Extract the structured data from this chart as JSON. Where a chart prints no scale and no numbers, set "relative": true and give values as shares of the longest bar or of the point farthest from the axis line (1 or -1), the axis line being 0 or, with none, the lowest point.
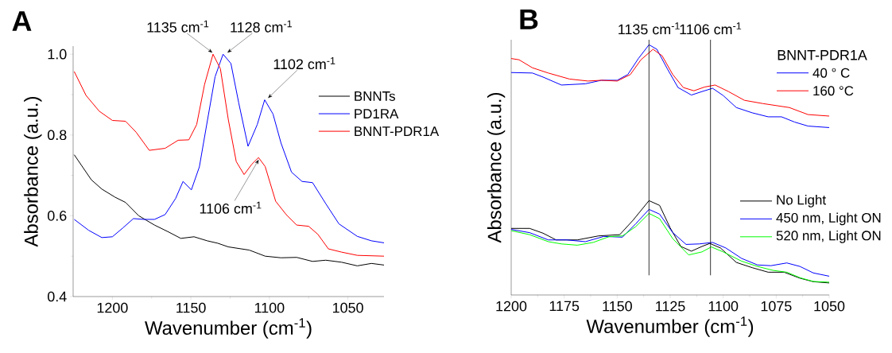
{
  "chart_data": [
    {
      "type": "line",
      "title": "A",
      "xlabel": "Wavenumber (cm$^{-1}$)",
      "ylabel": "Absorbance (a.u.)",
      "xlim": [
        1225,
        1027
      ],
      "xticks": [
        1200,
        1150,
        1100,
        1050
      ],
      "ylim": [
        0.4,
        1.02
      ],
      "yticks": [
        {
          "value": 0.4,
          "label": "0.4"
        },
        {
          "value": 0.6,
          "label": "0.6"
        },
        {
          "value": 0.8,
          "label": "0.8"
        },
        {
          "value": 1.0,
          "label": "1.0"
        }
      ],
      "legend": "right",
      "annotations": [
        {
          "text": "1135 cm$^{-1}$",
          "x": 1135,
          "y": 1.0
        },
        {
          "text": "1128 cm$^{-1}$",
          "x": 1128,
          "y": 1.0
        },
        {
          "text": "1102 cm$^{-1}$",
          "x": 1102,
          "y": 0.887
        },
        {
          "text": "1106 cm$^{-1}$",
          "x": 1106,
          "y": 0.744
        }
      ],
      "series": [
        {
          "name": "BNNTs",
          "color": "#000000",
          "x": [
            1224.3,
            1213.4,
            1206.7,
            1198.3,
            1191.6,
            1183.2,
            1173.2,
            1164.8,
            1156.4,
            1148.0,
            1139.6,
            1132.9,
            1126.2,
            1112.8,
            1102.7,
            1092.6,
            1082.6,
            1072.5,
            1064.1,
            1054.0,
            1044.0,
            1035,
            1027
          ],
          "values": [
            0.751,
            0.689,
            0.666,
            0.646,
            0.633,
            0.6,
            0.577,
            0.561,
            0.544,
            0.548,
            0.538,
            0.532,
            0.523,
            0.515,
            0.5,
            0.496,
            0.497,
            0.487,
            0.49,
            0.485,
            0.476,
            0.482,
            0.478
          ]
        },
        {
          "name": "PD1RA",
          "color": "#0000ff",
          "x": [
            1224.3,
            1215.1,
            1206.7,
            1200,
            1193.3,
            1186.6,
            1179.9,
            1173.2,
            1166.4,
            1159.7,
            1155.0,
            1149.7,
            1144.6,
            1139.6,
            1134.6,
            1129.5,
            1124.5,
            1119.5,
            1113.6,
            1107.7,
            1103.0,
            1097.7,
            1092.6,
            1085.9,
            1079.2,
            1072.5,
            1064.1,
            1055.7,
            1044.0,
            1035,
            1027
          ],
          "values": [
            0.591,
            0.564,
            0.546,
            0.548,
            0.57,
            0.593,
            0.591,
            0.591,
            0.603,
            0.643,
            0.685,
            0.664,
            0.721,
            0.833,
            0.944,
            1.0,
            0.977,
            0.879,
            0.772,
            0.826,
            0.887,
            0.852,
            0.78,
            0.708,
            0.685,
            0.682,
            0.63,
            0.58,
            0.549,
            0.538,
            0.533
          ]
        },
        {
          "name": "BNNT-PDR1A",
          "color": "#ff0000",
          "x": [
            1224.3,
            1216.8,
            1208.4,
            1200,
            1191.6,
            1184.9,
            1176.5,
            1166.4,
            1158.1,
            1151.3,
            1146.3,
            1141.3,
            1135.9,
            1131.2,
            1126.2,
            1121.1,
            1116.1,
            1111.1,
            1106.9,
            1102.7,
            1096.0,
            1089.3,
            1082.6,
            1075.0,
            1069.1,
            1062.4,
            1054.0,
            1044.0,
            1027
          ],
          "values": [
            0.957,
            0.898,
            0.859,
            0.836,
            0.834,
            0.807,
            0.762,
            0.767,
            0.787,
            0.788,
            0.826,
            0.925,
            1.0,
            0.964,
            0.839,
            0.734,
            0.702,
            0.728,
            0.744,
            0.722,
            0.636,
            0.603,
            0.577,
            0.574,
            0.554,
            0.518,
            0.51,
            0.502,
            0.5
          ]
        }
      ]
    },
    {
      "type": "line",
      "title": "B",
      "xlabel": "Wavenumber (cm$^{-1}$)",
      "ylabel": "Absorbance (a.u.)",
      "relative": true,
      "xlim": [
        1200,
        1050
      ],
      "xticks": [
        1200,
        1175,
        1150,
        1125,
        1100,
        1075,
        1050
      ],
      "legend": "right",
      "legend_title": "BNNT-PDR1A",
      "ref_lines": [
        {
          "axis": "x",
          "value": 1135,
          "label": "1135 cm$^{-1}$"
        },
        {
          "axis": "x",
          "value": 1106,
          "label": "1106 cm$^{-1}$"
        }
      ],
      "series": [
        {
          "name": "40 ° C",
          "color": "#0000ff",
          "x": [
            1200,
            1190,
            1185,
            1176.3,
            1165,
            1157.5,
            1150,
            1145,
            1140,
            1135,
            1131.3,
            1126.3,
            1121.3,
            1115,
            1110,
            1105,
            1100,
            1093.8,
            1086.3,
            1078.8,
            1072.5,
            1066.3,
            1060,
            1050
          ],
          "values": [
            0.889,
            0.887,
            0.871,
            0.839,
            0.844,
            0.858,
            0.858,
            0.881,
            0.945,
            1.0,
            0.982,
            0.903,
            0.829,
            0.799,
            0.813,
            0.826,
            0.797,
            0.749,
            0.728,
            0.712,
            0.712,
            0.691,
            0.675,
            0.669
          ]
        },
        {
          "name": "160 °C",
          "color": "#ff0000",
          "x": [
            1200,
            1196.3,
            1190,
            1182.5,
            1172.5,
            1163.8,
            1157.5,
            1150,
            1143.8,
            1138.8,
            1133.1,
            1128.8,
            1123.8,
            1118.8,
            1113.8,
            1108.8,
            1103.8,
            1097.5,
            1090,
            1081.3,
            1068.8,
            1060,
            1050
          ],
          "values": [
            0.945,
            0.94,
            0.908,
            0.887,
            0.863,
            0.855,
            0.858,
            0.855,
            0.881,
            0.94,
            0.982,
            0.956,
            0.881,
            0.829,
            0.816,
            0.831,
            0.839,
            0.813,
            0.778,
            0.765,
            0.749,
            0.721,
            0.715
          ]
        },
        {
          "name": "No Light",
          "color": "#000000",
          "x": [
            1200,
            1191.3,
            1185,
            1178.8,
            1168.8,
            1158.8,
            1148.8,
            1142.5,
            1135,
            1130,
            1125,
            1120,
            1115,
            1110,
            1106.3,
            1101.3,
            1093.8,
            1086.3,
            1078.8,
            1071.3,
            1063.8,
            1057.5,
            1050
          ],
          "values": [
            0.266,
            0.266,
            0.247,
            0.22,
            0.22,
            0.236,
            0.241,
            0.299,
            0.377,
            0.358,
            0.268,
            0.194,
            0.175,
            0.194,
            0.206,
            0.188,
            0.13,
            0.109,
            0.091,
            0.091,
            0.067,
            0.053,
            0.048
          ]
        },
        {
          "name": "450 nm, Light ON",
          "color": "#0000ff",
          "x": [
            1200,
            1191.3,
            1182.5,
            1173.8,
            1165,
            1156.3,
            1147.5,
            1141.3,
            1135,
            1130,
            1123.8,
            1117.5,
            1111.3,
            1105,
            1098.8,
            1091.3,
            1083.8,
            1077.5,
            1070,
            1063.8,
            1057.5,
            1050
          ],
          "values": [
            0.262,
            0.249,
            0.22,
            0.22,
            0.213,
            0.234,
            0.231,
            0.284,
            0.342,
            0.323,
            0.249,
            0.202,
            0.204,
            0.21,
            0.188,
            0.146,
            0.12,
            0.117,
            0.128,
            0.114,
            0.088,
            0.075
          ]
        },
        {
          "name": "520 nm, Light ON",
          "color": "#00ff00",
          "x": [
            1200,
            1191.3,
            1182.5,
            1176.3,
            1168.8,
            1161.3,
            1153.8,
            1147.5,
            1141.3,
            1135,
            1130,
            1123.8,
            1116.3,
            1110,
            1105.6,
            1100,
            1091.3,
            1083.8,
            1076.3,
            1070,
            1063.8,
            1057.5,
            1050
          ],
          "values": [
            0.257,
            0.241,
            0.213,
            0.204,
            0.199,
            0.21,
            0.233,
            0.236,
            0.273,
            0.326,
            0.305,
            0.225,
            0.16,
            0.172,
            0.192,
            0.172,
            0.135,
            0.114,
            0.098,
            0.091,
            0.069,
            0.054,
            0.051
          ]
        }
      ]
    }
  ]
}
